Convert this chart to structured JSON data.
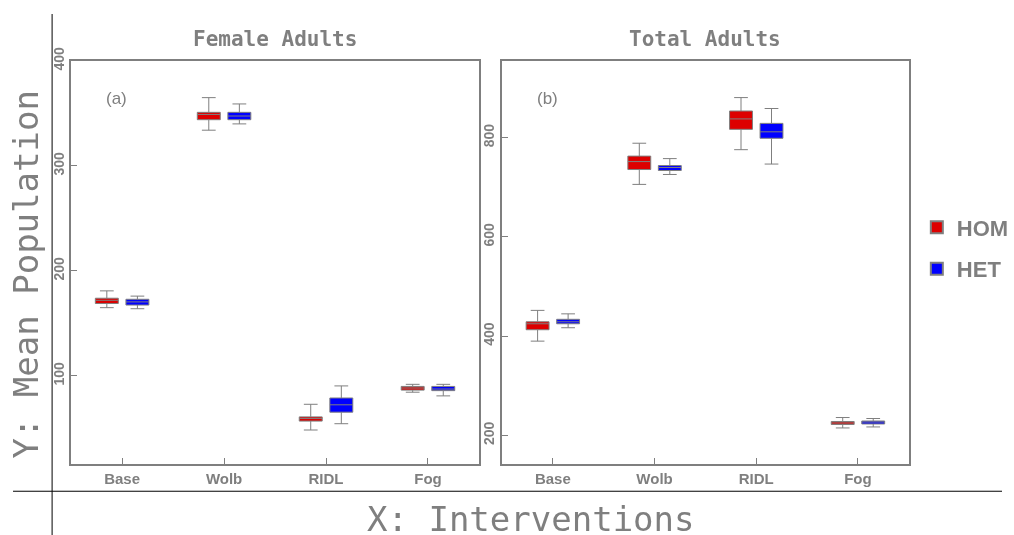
{
  "chart_data": [
    {
      "type": "box",
      "title": "Female Adults",
      "ylabel": "Y: Mean Population",
      "xlabel": "X: Interventions",
      "annotations": [
        "(a)"
      ],
      "categories": [
        "Base",
        "Wolb",
        "RIDL",
        "Fog"
      ],
      "series": [
        {
          "name": "HOM",
          "color": "#dd0000",
          "boxes": [
            {
              "low": 165,
              "q1": 169,
              "median": 172,
              "q3": 174,
              "high": 181
            },
            {
              "low": 334,
              "q1": 344,
              "median": 349,
              "q3": 351,
              "high": 365
            },
            {
              "low": 48.5,
              "q1": 57,
              "median": 59.5,
              "q3": 61,
              "high": 73
            },
            {
              "low": 84.5,
              "q1": 86.5,
              "median": 88.5,
              "q3": 90,
              "high": 92
            }
          ]
        },
        {
          "name": "HET",
          "color": "#0000ff",
          "boxes": [
            {
              "low": 164,
              "q1": 167.5,
              "median": 170.5,
              "q3": 173,
              "high": 176
            },
            {
              "low": 340,
              "q1": 344,
              "median": 347.5,
              "q3": 351,
              "high": 359
            },
            {
              "low": 54.5,
              "q1": 65.5,
              "median": 72.5,
              "q3": 79,
              "high": 90.5
            },
            {
              "low": 81,
              "q1": 86,
              "median": 87.5,
              "q3": 90,
              "high": 92
            }
          ]
        }
      ],
      "ylim": [
        16,
        400
      ],
      "yticks": [
        100,
        200,
        300,
        400
      ],
      "legend": "right"
    },
    {
      "type": "box",
      "title": "Total Adults",
      "annotations": [
        "(b)"
      ],
      "categories": [
        "Base",
        "Wolb",
        "RIDL",
        "Fog"
      ],
      "series": [
        {
          "color": "#dd0000",
          "boxes": [
            {
              "low": 390,
              "q1": 413,
              "median": 425,
              "q3": 429,
              "high": 452
            },
            {
              "low": 706,
              "q1": 736,
              "median": 752,
              "q3": 763,
              "high": 789
            },
            {
              "low": 776,
              "q1": 817,
              "median": 838,
              "q3": 854,
              "high": 881
            },
            {
              "low": 215,
              "q1": 222,
              "median": 225,
              "q3": 228,
              "high": 236
            }
          ]
        },
        {
          "color": "#0000ff",
          "boxes": [
            {
              "low": 417,
              "q1": 425,
              "median": 429,
              "q3": 434,
              "high": 445
            },
            {
              "low": 726,
              "q1": 734,
              "median": 740,
              "q3": 744,
              "high": 758
            },
            {
              "low": 747,
              "q1": 799,
              "median": 812,
              "q3": 829,
              "high": 859
            },
            {
              "low": 217,
              "q1": 223,
              "median": 227,
              "q3": 229,
              "high": 234
            }
          ]
        }
      ],
      "ylim": [
        142,
        955
      ],
      "yticks": [
        200,
        400,
        600,
        800
      ]
    }
  ]
}
